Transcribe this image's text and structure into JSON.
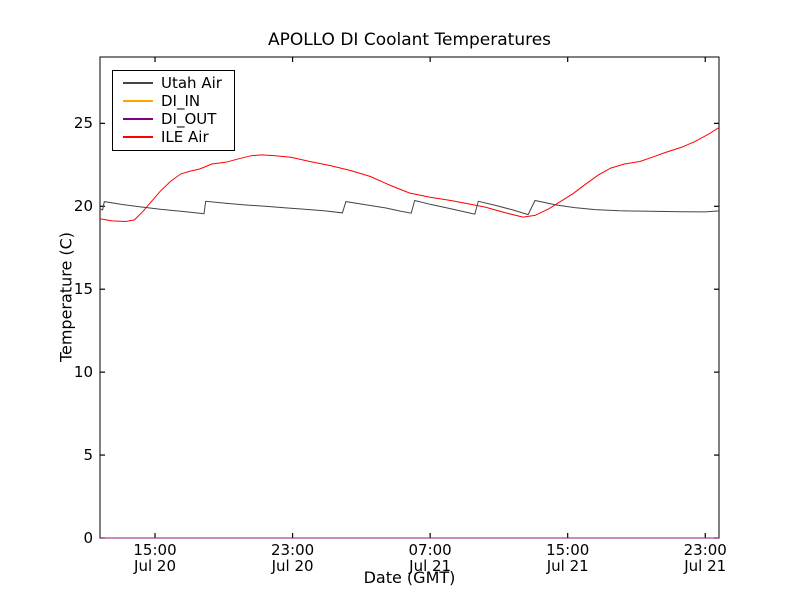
{
  "chart_data": {
    "type": "line",
    "title": "APOLLO DI Coolant Temperatures",
    "xlabel": "Date (GMT)",
    "ylabel": "Temperature (C)",
    "x_unit": "hours since Jul 20 00:00 GMT",
    "xlim": [
      11.8,
      47.8
    ],
    "ylim": [
      0,
      29
    ],
    "grid": false,
    "legend_position": "upper left",
    "y_ticks": [
      {
        "v": 0,
        "label": "0"
      },
      {
        "v": 5,
        "label": "5"
      },
      {
        "v": 10,
        "label": "10"
      },
      {
        "v": 15,
        "label": "15"
      },
      {
        "v": 20,
        "label": "20"
      },
      {
        "v": 25,
        "label": "25"
      }
    ],
    "x_ticks": [
      {
        "v": 15,
        "time": "15:00",
        "date": "Jul 20"
      },
      {
        "v": 23,
        "time": "23:00",
        "date": "Jul 20"
      },
      {
        "v": 31,
        "time": "07:00",
        "date": "Jul 21"
      },
      {
        "v": 39,
        "time": "15:00",
        "date": "Jul 21"
      },
      {
        "v": 47,
        "time": "23:00",
        "date": "Jul 21"
      }
    ],
    "series": [
      {
        "name": "Utah Air",
        "color": "#444444",
        "opacity": 1,
        "points": [
          [
            11.8,
            19.85
          ],
          [
            11.95,
            19.78
          ],
          [
            12.05,
            20.28
          ],
          [
            13.0,
            20.12
          ],
          [
            14.1,
            19.97
          ],
          [
            15.3,
            19.82
          ],
          [
            16.5,
            19.7
          ],
          [
            17.6,
            19.58
          ],
          [
            17.85,
            19.55
          ],
          [
            17.95,
            20.3
          ],
          [
            19.1,
            20.18
          ],
          [
            20.2,
            20.08
          ],
          [
            21.4,
            20.0
          ],
          [
            22.6,
            19.9
          ],
          [
            23.7,
            19.82
          ],
          [
            24.9,
            19.72
          ],
          [
            25.9,
            19.6
          ],
          [
            26.1,
            20.28
          ],
          [
            27.2,
            20.1
          ],
          [
            28.4,
            19.9
          ],
          [
            29.3,
            19.7
          ],
          [
            29.9,
            19.58
          ],
          [
            30.1,
            20.35
          ],
          [
            31.0,
            20.12
          ],
          [
            32.2,
            19.85
          ],
          [
            33.2,
            19.62
          ],
          [
            33.6,
            19.52
          ],
          [
            33.8,
            20.3
          ],
          [
            34.8,
            20.05
          ],
          [
            35.8,
            19.78
          ],
          [
            36.7,
            19.5
          ],
          [
            37.1,
            20.35
          ],
          [
            38.3,
            20.08
          ],
          [
            39.4,
            19.92
          ],
          [
            40.6,
            19.8
          ],
          [
            42.0,
            19.73
          ],
          [
            43.8,
            19.7
          ],
          [
            45.6,
            19.67
          ],
          [
            47.0,
            19.66
          ],
          [
            47.8,
            19.72
          ]
        ]
      },
      {
        "name": "DI_IN",
        "color": "#ffa500",
        "opacity": 1,
        "points": [
          [
            11.8,
            0
          ],
          [
            47.8,
            0
          ]
        ]
      },
      {
        "name": "DI_OUT",
        "color": "#800080",
        "opacity": 0.85,
        "points": [
          [
            11.8,
            0
          ],
          [
            47.8,
            0
          ]
        ]
      },
      {
        "name": "ILE Air",
        "color": "#ff0000",
        "opacity": 1,
        "points": [
          [
            11.8,
            19.25
          ],
          [
            12.5,
            19.12
          ],
          [
            13.3,
            19.08
          ],
          [
            13.8,
            19.18
          ],
          [
            14.3,
            19.7
          ],
          [
            14.8,
            20.3
          ],
          [
            15.3,
            20.9
          ],
          [
            15.9,
            21.5
          ],
          [
            16.5,
            21.95
          ],
          [
            17.0,
            22.1
          ],
          [
            17.6,
            22.25
          ],
          [
            18.3,
            22.55
          ],
          [
            19.1,
            22.65
          ],
          [
            20.0,
            22.9
          ],
          [
            20.6,
            23.05
          ],
          [
            21.2,
            23.1
          ],
          [
            22.0,
            23.05
          ],
          [
            22.9,
            22.95
          ],
          [
            24.0,
            22.7
          ],
          [
            25.2,
            22.45
          ],
          [
            26.4,
            22.15
          ],
          [
            27.5,
            21.8
          ],
          [
            28.7,
            21.25
          ],
          [
            29.8,
            20.8
          ],
          [
            31.0,
            20.55
          ],
          [
            32.2,
            20.35
          ],
          [
            33.2,
            20.15
          ],
          [
            34.2,
            19.95
          ],
          [
            35.4,
            19.6
          ],
          [
            36.4,
            19.35
          ],
          [
            37.1,
            19.45
          ],
          [
            37.9,
            19.85
          ],
          [
            38.6,
            20.3
          ],
          [
            39.3,
            20.75
          ],
          [
            40.0,
            21.3
          ],
          [
            40.8,
            21.9
          ],
          [
            41.5,
            22.3
          ],
          [
            42.3,
            22.55
          ],
          [
            43.2,
            22.7
          ],
          [
            43.9,
            22.95
          ],
          [
            44.7,
            23.25
          ],
          [
            45.6,
            23.55
          ],
          [
            46.4,
            23.9
          ],
          [
            47.2,
            24.35
          ],
          [
            47.8,
            24.75
          ]
        ]
      }
    ]
  }
}
